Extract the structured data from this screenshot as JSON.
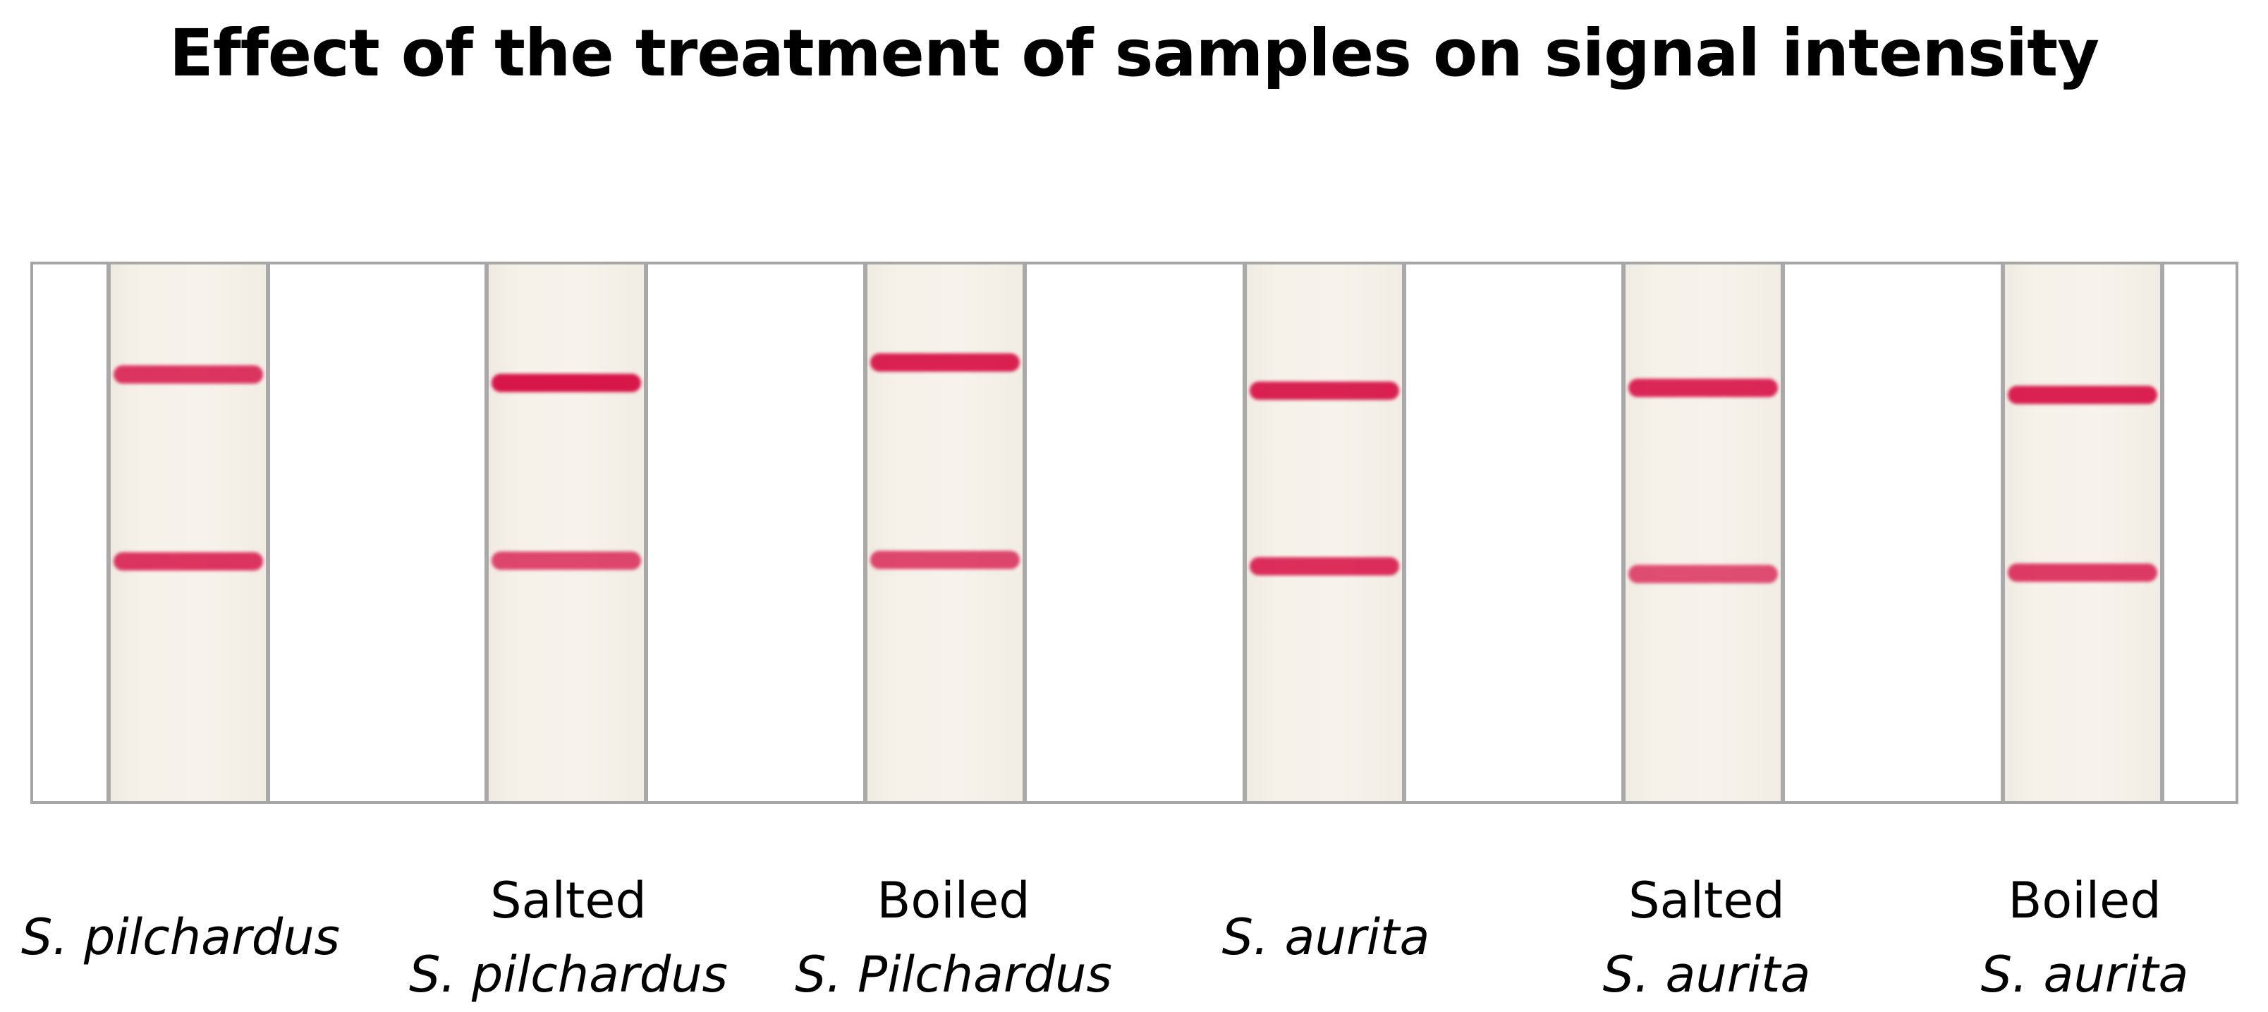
{
  "title": "Effect of the treatment of samples on signal intensity",
  "colors": {
    "band": "#d8164a",
    "strip": "#f5f1ea",
    "border": "#a6a6a6"
  },
  "strips": [
    {
      "caption": {
        "line1": "S. pilchardus",
        "line2": ""
      },
      "bands": [
        {
          "name": "control-line",
          "intensity": 0.75
        },
        {
          "name": "test-line",
          "intensity": 0.75
        }
      ]
    },
    {
      "caption": {
        "line1": "Salted",
        "line2": "S. pilchardus"
      },
      "bands": [
        {
          "name": "control-line",
          "intensity": 1.0
        },
        {
          "name": "test-line",
          "intensity": 0.6
        }
      ]
    },
    {
      "caption": {
        "line1": "Boiled",
        "line2": "S. Pilchardus"
      },
      "bands": [
        {
          "name": "control-line",
          "intensity": 0.9
        },
        {
          "name": "test-line",
          "intensity": 0.6
        }
      ]
    },
    {
      "caption": {
        "line1": "S. aurita",
        "line2": ""
      },
      "bands": [
        {
          "name": "control-line",
          "intensity": 0.9
        },
        {
          "name": "test-line",
          "intensity": 0.8
        }
      ]
    },
    {
      "caption": {
        "line1": "Salted",
        "line2": "S. aurita"
      },
      "bands": [
        {
          "name": "control-line",
          "intensity": 0.85
        },
        {
          "name": "test-line",
          "intensity": 0.55
        }
      ]
    },
    {
      "caption": {
        "line1": "Boiled",
        "line2": "S. aurita"
      },
      "bands": [
        {
          "name": "control-line",
          "intensity": 0.9
        },
        {
          "name": "test-line",
          "intensity": 0.7
        }
      ]
    }
  ]
}
